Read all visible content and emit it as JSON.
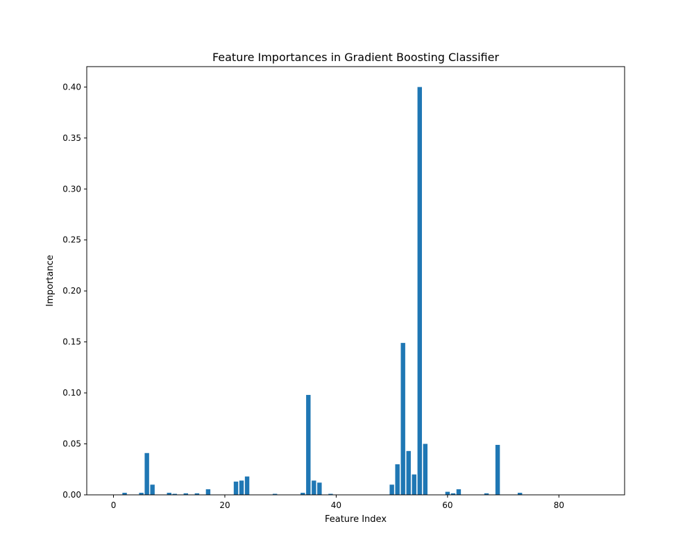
{
  "chart_data": {
    "type": "bar",
    "title": "Feature Importances in Gradient Boosting Classifier",
    "xlabel": "Feature Index",
    "ylabel": "Importance",
    "xlim": [
      -4.8,
      91.8
    ],
    "ylim": [
      0,
      0.42
    ],
    "xticks": [
      0,
      20,
      40,
      60,
      80
    ],
    "yticks": [
      0.0,
      0.05,
      0.1,
      0.15,
      0.2,
      0.25,
      0.3,
      0.35,
      0.4
    ],
    "ytick_labels": [
      "0.00",
      "0.05",
      "0.10",
      "0.15",
      "0.20",
      "0.25",
      "0.30",
      "0.35",
      "0.40"
    ],
    "grid": false,
    "bar_color": "#1f77b4",
    "x": [
      0,
      1,
      2,
      3,
      4,
      5,
      6,
      7,
      8,
      9,
      10,
      11,
      12,
      13,
      14,
      15,
      16,
      17,
      18,
      19,
      20,
      21,
      22,
      23,
      24,
      25,
      26,
      27,
      28,
      29,
      30,
      31,
      32,
      33,
      34,
      35,
      36,
      37,
      38,
      39,
      40,
      41,
      42,
      43,
      44,
      45,
      46,
      47,
      48,
      49,
      50,
      51,
      52,
      53,
      54,
      55,
      56,
      57,
      58,
      59,
      60,
      61,
      62,
      63,
      64,
      65,
      66,
      67,
      68,
      69,
      70,
      71,
      72,
      73,
      74,
      75,
      76,
      77,
      78,
      79,
      80,
      81,
      82,
      83,
      84,
      85,
      86,
      87
    ],
    "values": [
      0,
      0,
      0.002,
      0,
      0,
      0.002,
      0.041,
      0.01,
      0,
      0,
      0.002,
      0.001,
      0,
      0.0015,
      0,
      0.0015,
      0,
      0.0055,
      0,
      0,
      0,
      0,
      0.013,
      0.014,
      0.018,
      0,
      0,
      0,
      0,
      0.001,
      0,
      0,
      0,
      0,
      0.002,
      0.098,
      0.014,
      0.012,
      0,
      0.001,
      0,
      0,
      0,
      0,
      0,
      0,
      0,
      0,
      0,
      0,
      0.01,
      0.03,
      0.149,
      0.043,
      0.02,
      0.4,
      0.05,
      0,
      0,
      0,
      0.003,
      0.0015,
      0.0055,
      0,
      0,
      0,
      0,
      0.0015,
      0,
      0.049,
      0,
      0,
      0,
      0.002,
      0,
      0,
      0,
      0,
      0,
      0,
      0,
      0,
      0,
      0,
      0,
      0,
      0,
      0
    ]
  }
}
